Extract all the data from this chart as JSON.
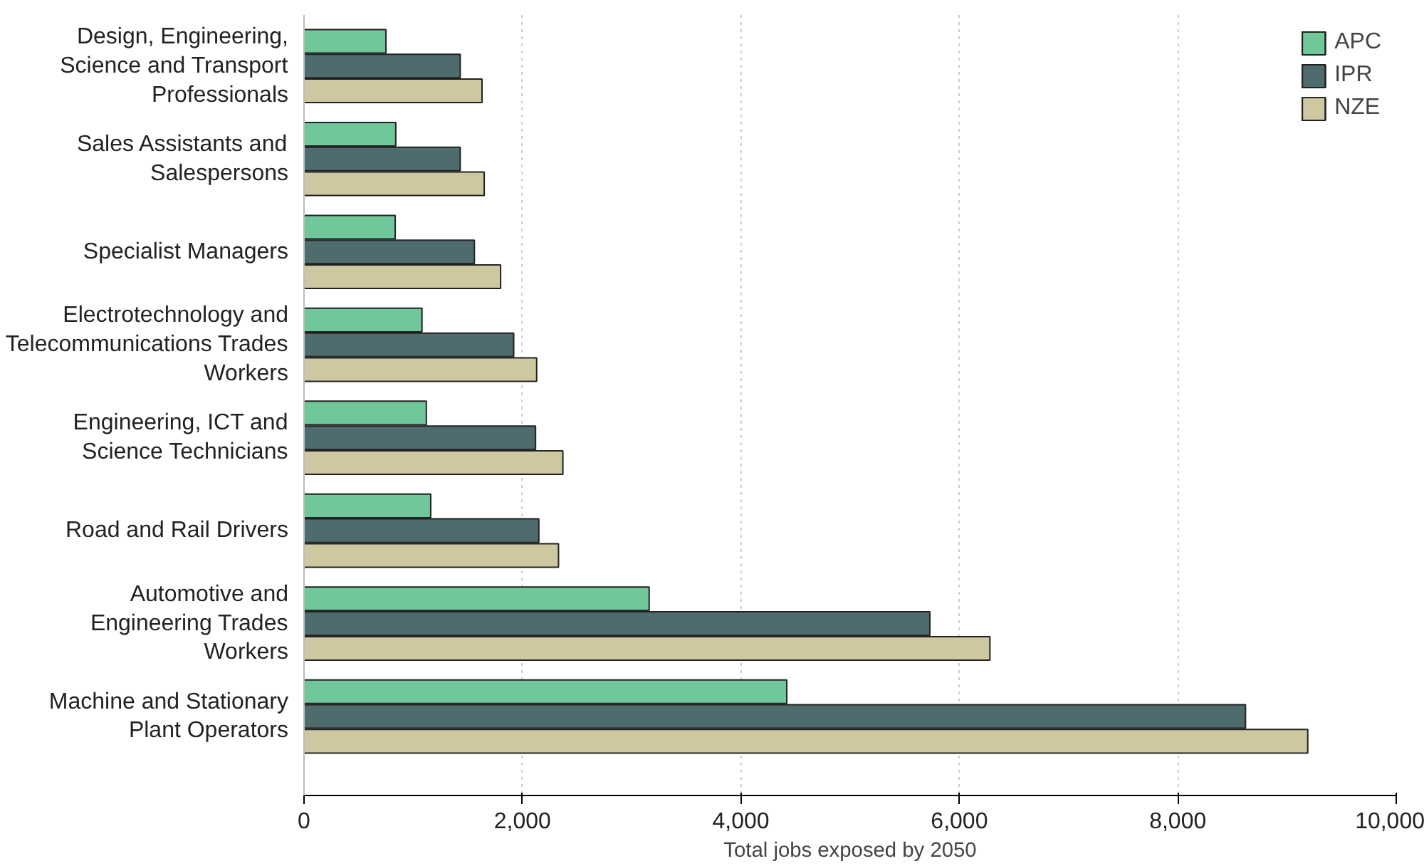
{
  "chart_data": {
    "type": "bar",
    "orientation": "horizontal",
    "xlabel": "Total jobs exposed by 2050",
    "categories": [
      "Design, Engineering,\nScience and Transport\nProfessionals",
      "Sales Assistants and\nSalespersons",
      "Specialist Managers",
      "Electrotechnology and\nTelecommunications Trades\nWorkers",
      "Engineering, ICT and\nScience Technicians",
      "Road and Rail Drivers",
      "Automotive and\nEngineering Trades\nWorkers",
      "Machine and Stationary\nPlant Operators"
    ],
    "series": [
      {
        "name": "APC",
        "color": "#6fc79a",
        "values": [
          750,
          840,
          835,
          1080,
          1120,
          1160,
          3160,
          4420
        ]
      },
      {
        "name": "IPR",
        "color": "#4e6b6e",
        "values": [
          1430,
          1430,
          1560,
          1920,
          2120,
          2150,
          5730,
          8620
        ]
      },
      {
        "name": "NZE",
        "color": "#cdc8a0",
        "values": [
          1630,
          1650,
          1800,
          2130,
          2370,
          2330,
          6280,
          9190
        ]
      }
    ],
    "xlim": [
      0,
      10000
    ],
    "xticks": [
      0,
      {
        "value": 2000,
        "label": "2,000"
      },
      {
        "value": 4000,
        "label": "4,000"
      },
      {
        "value": 6000,
        "label": "6,000"
      },
      {
        "value": 8000,
        "label": "8,000"
      },
      {
        "value": 10000,
        "label": "10,000"
      }
    ],
    "grid": "x",
    "legend": "top right"
  }
}
